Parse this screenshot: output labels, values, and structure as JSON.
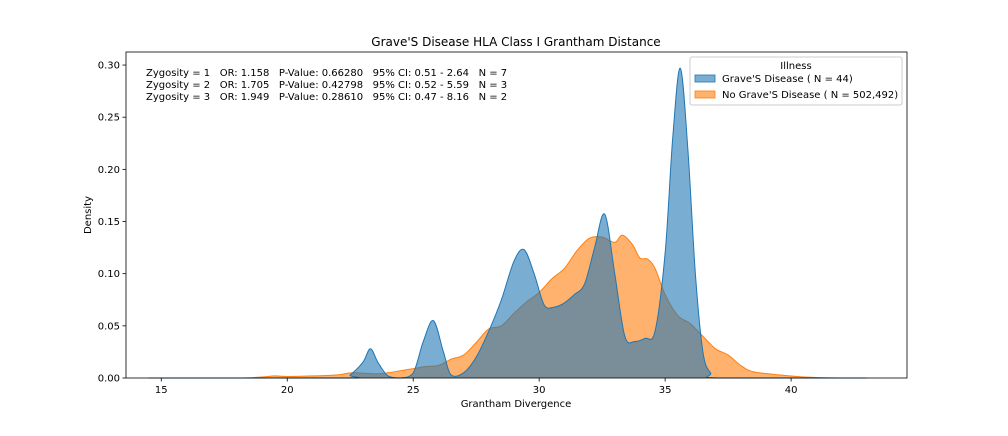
{
  "chart_data": {
    "type": "area",
    "title": "Grave'S Disease HLA Class I Grantham Distance",
    "xlabel": "Grantham Divergence",
    "ylabel": "Density",
    "xlim": [
      13.6,
      44.6
    ],
    "ylim": [
      0,
      0.3125
    ],
    "xticks": [
      15,
      20,
      25,
      30,
      35,
      40
    ],
    "yticks": [
      0.0,
      0.05,
      0.1,
      0.15,
      0.2,
      0.25,
      0.3
    ],
    "xtick_labels": [
      "15",
      "20",
      "25",
      "30",
      "35",
      "40"
    ],
    "ytick_labels": [
      "0.00",
      "0.05",
      "0.10",
      "0.15",
      "0.20",
      "0.25",
      "0.30"
    ],
    "grid": false,
    "legend": {
      "title": "Illness",
      "placement": "top-right",
      "entries": [
        "Grave'S Disease ( N = 44)",
        "No Grave'S Disease ( N = 502,492)"
      ]
    },
    "annotations": [
      "Zygosity = 1   OR: 1.158   P-Value: 0.66280   95% CI: 0.51 - 2.64   N = 7",
      "Zygosity = 2   OR: 1.705   P-Value: 0.42798   95% CI: 0.52 - 5.59   N = 3",
      "Zygosity = 3   OR: 1.949   P-Value: 0.28610   95% CI: 0.47 - 8.16   N = 2"
    ],
    "series": [
      {
        "name": "Grave'S Disease ( N = 44)",
        "color": "#1f77b4",
        "x": [
          14.5,
          22.2,
          22.5,
          23.0,
          23.3,
          23.6,
          24.0,
          24.5,
          25.0,
          25.4,
          25.8,
          26.2,
          26.5,
          27.0,
          27.5,
          28.0,
          28.5,
          29.0,
          29.4,
          29.8,
          30.2,
          30.6,
          31.0,
          31.4,
          31.8,
          32.2,
          32.6,
          33.0,
          33.4,
          33.8,
          34.2,
          34.6,
          35.0,
          35.3,
          35.6,
          35.9,
          36.2,
          36.5,
          36.8,
          37.2,
          43.0
        ],
        "y": [
          0.0,
          0.0,
          0.003,
          0.015,
          0.028,
          0.015,
          0.002,
          0.0,
          0.005,
          0.035,
          0.055,
          0.025,
          0.003,
          0.005,
          0.02,
          0.045,
          0.075,
          0.112,
          0.123,
          0.1,
          0.07,
          0.068,
          0.072,
          0.08,
          0.09,
          0.125,
          0.157,
          0.1,
          0.04,
          0.035,
          0.038,
          0.045,
          0.12,
          0.23,
          0.297,
          0.22,
          0.1,
          0.025,
          0.005,
          0.0,
          0.0
        ]
      },
      {
        "name": "No Grave'S Disease ( N = 502,492)",
        "color": "#ff7f0e",
        "x": [
          14.5,
          18.0,
          19.0,
          19.5,
          20.0,
          21.0,
          22.0,
          22.6,
          23.5,
          24.0,
          24.5,
          25.0,
          25.5,
          26.0,
          26.5,
          27.0,
          27.5,
          28.0,
          28.5,
          29.0,
          29.5,
          30.0,
          30.5,
          31.0,
          31.5,
          32.0,
          32.5,
          33.0,
          33.3,
          33.7,
          34.0,
          34.3,
          34.6,
          35.0,
          35.5,
          36.0,
          36.5,
          37.0,
          37.5,
          38.0,
          38.5,
          39.5,
          40.5,
          42.0,
          43.0
        ],
        "y": [
          0.0,
          0.0,
          0.001,
          0.002,
          0.0015,
          0.002,
          0.003,
          0.005,
          0.004,
          0.005,
          0.007,
          0.009,
          0.011,
          0.012,
          0.018,
          0.022,
          0.034,
          0.047,
          0.05,
          0.062,
          0.073,
          0.082,
          0.095,
          0.105,
          0.122,
          0.134,
          0.135,
          0.13,
          0.137,
          0.128,
          0.115,
          0.114,
          0.105,
          0.08,
          0.06,
          0.052,
          0.04,
          0.028,
          0.022,
          0.012,
          0.006,
          0.003,
          0.001,
          0.0,
          0.0
        ]
      }
    ]
  }
}
